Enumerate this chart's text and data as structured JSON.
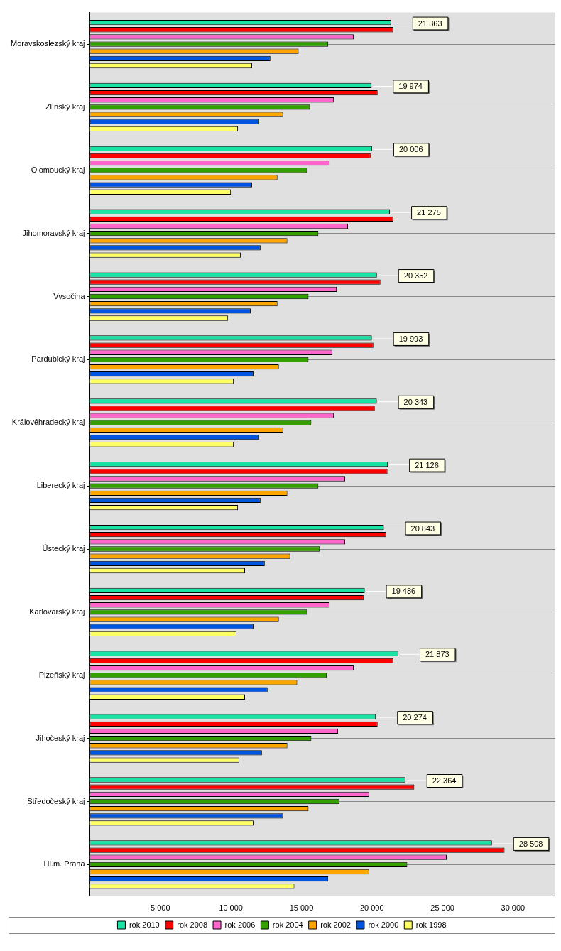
{
  "chart_data": {
    "type": "bar",
    "orientation": "horizontal",
    "categories": [
      "Moravskoslezský kraj",
      "Zlínský kraj",
      "Olomoucký kraj",
      "Jihomoravský kraj",
      "Vysočina",
      "Pardubický kraj",
      "Královéhradecký kraj",
      "Liberecký kraj",
      "Ústecký kraj",
      "Karlovarský kraj",
      "Plzeňský kraj",
      "Jihočeský kraj",
      "Středočeský kraj",
      "Hl.m. Praha"
    ],
    "series": [
      {
        "name": "rok 2010",
        "color": "#19e3a4",
        "values": [
          21363,
          19974,
          20006,
          21275,
          20352,
          19993,
          20343,
          21126,
          20843,
          19486,
          21873,
          20274,
          22364,
          28508
        ],
        "value_labels": [
          "21 363",
          "19 974",
          "20 006",
          "21 275",
          "20 352",
          "19 993",
          "20 343",
          "21 126",
          "20 843",
          "19 486",
          "21 873",
          "20 274",
          "22 364",
          "28 508"
        ]
      },
      {
        "name": "rok 2008",
        "color": "#ff0000",
        "values": [
          21500,
          20400,
          19900,
          21500,
          20600,
          20100,
          20200,
          21100,
          21000,
          19400,
          21500,
          20400,
          23000,
          29400
        ]
      },
      {
        "name": "rok 2006",
        "color": "#ff66cc",
        "values": [
          18700,
          17300,
          17000,
          18300,
          17500,
          17200,
          17300,
          18100,
          18100,
          17000,
          18700,
          17600,
          19800,
          25300
        ]
      },
      {
        "name": "rok 2004",
        "color": "#33a000",
        "values": [
          16900,
          15600,
          15400,
          16200,
          15500,
          15500,
          15700,
          16200,
          16300,
          15400,
          16800,
          15700,
          17700,
          22500
        ]
      },
      {
        "name": "rok 2002",
        "color": "#ffa500",
        "values": [
          14800,
          13700,
          13300,
          14000,
          13300,
          13400,
          13700,
          14000,
          14200,
          13400,
          14700,
          14000,
          15500,
          19800
        ]
      },
      {
        "name": "rok 2000",
        "color": "#0055e0",
        "values": [
          12800,
          12000,
          11500,
          12100,
          11400,
          11600,
          12000,
          12100,
          12400,
          11600,
          12600,
          12200,
          13700,
          16900
        ]
      },
      {
        "name": "rok 1998",
        "color": "#ffff66",
        "values": [
          11500,
          10500,
          10000,
          10700,
          9800,
          10200,
          10200,
          10500,
          11000,
          10400,
          11000,
          10600,
          11600,
          14500
        ]
      }
    ],
    "xlim": [
      0,
      33000
    ],
    "xticks": [
      {
        "value": 5000,
        "label": "5 000"
      },
      {
        "value": 10000,
        "label": "10 000"
      },
      {
        "value": 15000,
        "label": "15 000"
      },
      {
        "value": 20000,
        "label": "20 000"
      },
      {
        "value": 25000,
        "label": "25 000"
      },
      {
        "value": 30000,
        "label": "30 000"
      }
    ],
    "grid": "y",
    "legend": "bottom"
  }
}
